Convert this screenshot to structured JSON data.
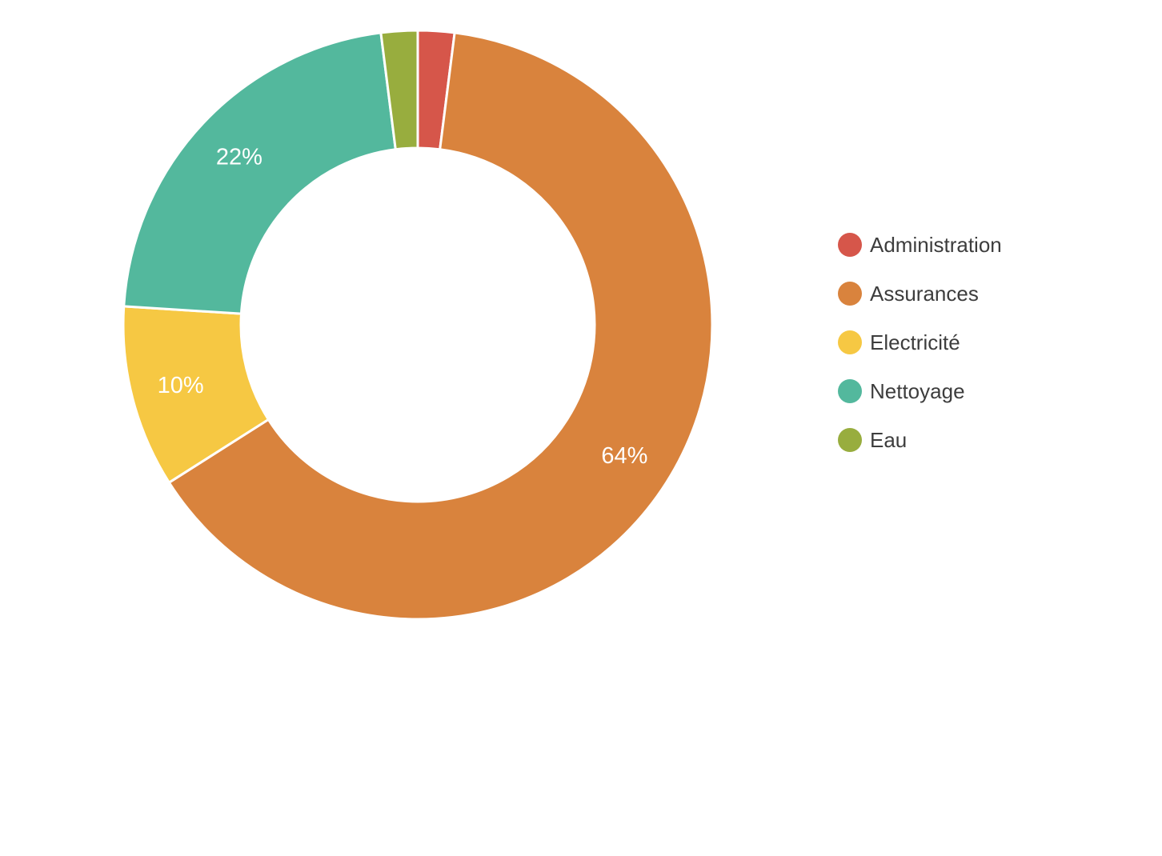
{
  "chart_data": {
    "type": "pie",
    "subtype": "donut",
    "title": "",
    "categories": [
      "Administration",
      "Assurances",
      "Electricité",
      "Nettoyage",
      "Eau"
    ],
    "values": [
      2,
      64,
      10,
      22,
      2
    ],
    "slice_labels": [
      "",
      "64%",
      "10%",
      "22%",
      ""
    ],
    "colors": [
      "#d6564a",
      "#d9833d",
      "#f6c843",
      "#53b89d",
      "#98ad3e"
    ],
    "start_angle_deg": 0,
    "direction": "clockwise",
    "inner_radius_ratio": 0.6,
    "slice_border_color": "#ffffff",
    "label_color": "#ffffff",
    "legend_position": "right",
    "legend_text_color": "#3d3d3d",
    "background_color": "#ffffff"
  }
}
